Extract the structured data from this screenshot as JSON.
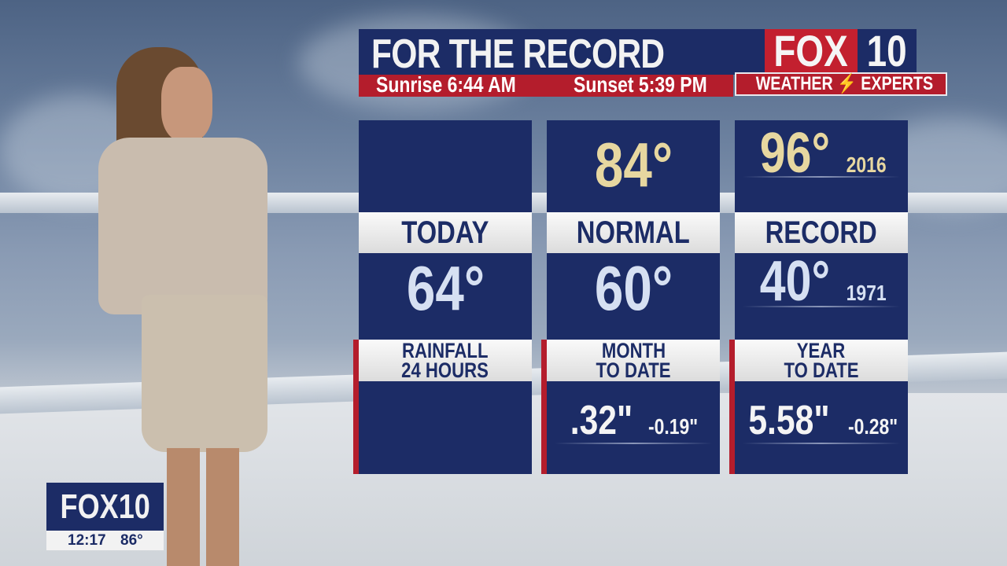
{
  "header": {
    "title": "FOR THE RECORD",
    "sunrise": "Sunrise 6:44 AM",
    "sunset": "Sunset 5:39 PM"
  },
  "logo": {
    "fox": "FOX",
    "number": "10",
    "tagline_left": "WEATHER",
    "tagline_right": "EXPERTS",
    "bolt_icon": "lightning-bolt-icon"
  },
  "columns": [
    {
      "top_value": "",
      "top_year": "",
      "label": "TODAY",
      "temp": "64°",
      "temp_year": "",
      "precip_label_1": "RAINFALL",
      "precip_label_2": "24 HOURS",
      "precip_value": "",
      "precip_departure": ""
    },
    {
      "top_value": "84°",
      "top_year": "",
      "label": "NORMAL",
      "temp": "60°",
      "temp_year": "",
      "precip_label_1": "MONTH",
      "precip_label_2": "TO DATE",
      "precip_value": ".32\"",
      "precip_departure": "-0.19\""
    },
    {
      "top_value": "96°",
      "top_year": "2016",
      "label": "RECORD",
      "temp": "40°",
      "temp_year": "1971",
      "precip_label_1": "YEAR",
      "precip_label_2": "TO DATE",
      "precip_value": "5.58\"",
      "precip_departure": "-0.28\""
    }
  ],
  "bug": {
    "logo": "FOX10",
    "time": "12:17",
    "temp": "86°"
  },
  "colors": {
    "navy": "#1c2c66",
    "red": "#b41d2c",
    "gold": "#e7d7a0"
  }
}
